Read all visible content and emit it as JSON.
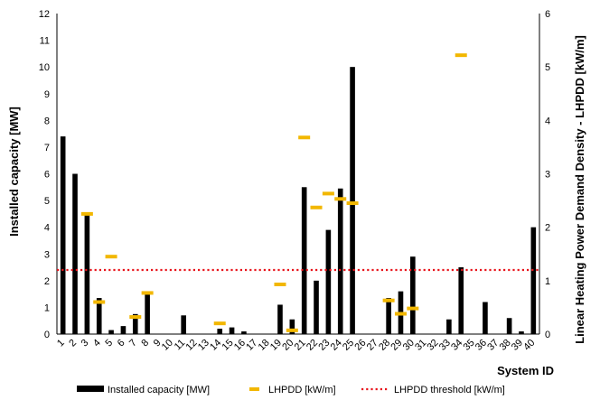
{
  "chart_data": {
    "type": "bar",
    "xlabel": "System ID",
    "ylabel_left": "Installed capacity [MW]",
    "ylabel_right": "Linear Heating Power Demand Density - LHPDD [kW/m]",
    "ylim_left": [
      0,
      12
    ],
    "ylim_right": [
      0,
      6
    ],
    "yticks_left": [
      "0",
      "1",
      "2",
      "3",
      "4",
      "5",
      "6",
      "7",
      "8",
      "9",
      "10",
      "11",
      "12"
    ],
    "yticks_right": [
      "0",
      "1",
      "2",
      "3",
      "4",
      "5",
      "6"
    ],
    "categories": [
      "1",
      "2",
      "3",
      "4",
      "5",
      "6",
      "7",
      "8",
      "9",
      "10",
      "11",
      "12",
      "13",
      "14",
      "15",
      "16",
      "17",
      "18",
      "19",
      "20",
      "21",
      "22",
      "23",
      "24",
      "25",
      "26",
      "27",
      "28",
      "29",
      "30",
      "31",
      "32",
      "33",
      "34",
      "35",
      "36",
      "37",
      "38",
      "39",
      "40"
    ],
    "series": [
      {
        "name": "Installed capacity [MW]",
        "axis": "left",
        "kind": "bar",
        "color": "#000000",
        "values": [
          7.4,
          6.0,
          4.5,
          1.35,
          0.15,
          0.3,
          0.75,
          1.5,
          0,
          0,
          0.7,
          0,
          0,
          0.2,
          0.25,
          0.1,
          0,
          0,
          1.1,
          0.55,
          5.5,
          2.0,
          3.9,
          5.45,
          10.0,
          0,
          0,
          1.35,
          1.6,
          2.9,
          0,
          0,
          0.55,
          2.5,
          0,
          1.2,
          0,
          0.6,
          0.1,
          4.0
        ]
      },
      {
        "name": "LHPDD [kW/m]",
        "axis": "right",
        "kind": "marker",
        "color": "#F2B700",
        "values": [
          null,
          null,
          2.25,
          0.6,
          1.45,
          null,
          0.32,
          0.77,
          null,
          null,
          null,
          null,
          null,
          0.2,
          null,
          null,
          null,
          null,
          0.93,
          0.07,
          3.68,
          2.37,
          2.63,
          2.53,
          2.45,
          null,
          null,
          0.63,
          0.38,
          0.48,
          null,
          null,
          null,
          5.22,
          null,
          null,
          null,
          null,
          null,
          null
        ]
      },
      {
        "name": "LHPDD threshold [kW/m]",
        "axis": "right",
        "kind": "threshold",
        "color": "#E8141C",
        "value": 1.2
      }
    ],
    "grid": false,
    "legend": "bottom"
  }
}
